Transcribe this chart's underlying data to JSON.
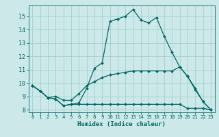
{
  "title": "",
  "xlabel": "Humidex (Indice chaleur)",
  "bg_color": "#cce8e8",
  "grid_color": "#99cccc",
  "line_color": "#006666",
  "xlim": [
    -0.5,
    23.5
  ],
  "ylim": [
    7.8,
    15.8
  ],
  "yticks": [
    8,
    9,
    10,
    11,
    12,
    13,
    14,
    15
  ],
  "xticks": [
    0,
    1,
    2,
    3,
    4,
    5,
    6,
    7,
    8,
    9,
    10,
    11,
    12,
    13,
    14,
    15,
    16,
    17,
    18,
    19,
    20,
    21,
    22,
    23
  ],
  "line1_x": [
    0,
    1,
    2,
    3,
    4,
    5,
    6,
    7,
    8,
    9,
    10,
    11,
    12,
    13,
    14,
    15,
    16,
    17,
    18,
    19,
    20,
    21,
    22,
    23
  ],
  "line1_y": [
    9.8,
    9.4,
    8.9,
    8.8,
    8.3,
    8.4,
    8.5,
    9.6,
    11.1,
    11.5,
    14.6,
    14.8,
    15.0,
    15.5,
    14.7,
    14.5,
    14.9,
    13.5,
    12.3,
    11.2,
    10.5,
    9.6,
    8.6,
    8.0
  ],
  "line2_x": [
    0,
    1,
    2,
    3,
    4,
    5,
    6,
    7,
    8,
    9,
    10,
    11,
    12,
    13,
    14,
    15,
    16,
    17,
    18,
    19,
    20,
    21,
    22,
    23
  ],
  "line2_y": [
    9.8,
    9.4,
    8.9,
    8.8,
    8.3,
    8.4,
    8.4,
    8.4,
    8.4,
    8.4,
    8.4,
    8.4,
    8.4,
    8.4,
    8.4,
    8.4,
    8.4,
    8.4,
    8.4,
    8.4,
    8.1,
    8.1,
    8.1,
    8.0
  ],
  "line3_x": [
    0,
    1,
    2,
    3,
    4,
    5,
    6,
    7,
    8,
    9,
    10,
    11,
    12,
    13,
    14,
    15,
    16,
    17,
    18,
    19,
    20,
    21,
    22,
    23
  ],
  "line3_y": [
    9.8,
    9.4,
    8.9,
    9.0,
    8.7,
    8.7,
    9.2,
    9.8,
    10.1,
    10.4,
    10.6,
    10.7,
    10.8,
    10.9,
    10.9,
    10.9,
    10.9,
    10.9,
    10.9,
    11.2,
    10.5,
    9.5,
    8.6,
    8.0
  ],
  "markersize": 2.0,
  "linewidth": 0.9
}
